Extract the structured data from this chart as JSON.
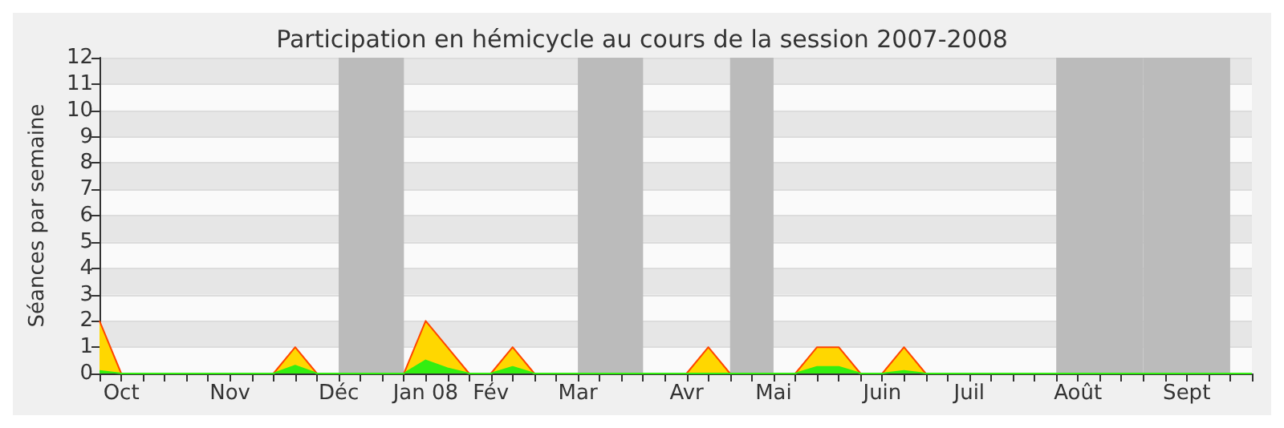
{
  "chart_data": {
    "type": "area",
    "title": "Participation en hémicycle au cours de la session 2007-2008",
    "ylabel": "Séances par semaine",
    "categories": [
      null,
      "Oct",
      null,
      null,
      null,
      null,
      "Nov",
      null,
      null,
      null,
      null,
      "Déc",
      null,
      null,
      null,
      "Jan 08",
      null,
      null,
      "Fév",
      null,
      null,
      null,
      "Mar",
      null,
      null,
      null,
      null,
      "Avr",
      null,
      null,
      null,
      "Mai",
      null,
      null,
      null,
      null,
      "Juin",
      null,
      null,
      null,
      "Juil",
      null,
      null,
      null,
      null,
      "Août",
      null,
      null,
      null,
      null,
      "Sept",
      null,
      null,
      null
    ],
    "series": [
      {
        "color": "#ffd700",
        "values": [
          2,
          0,
          0,
          0,
          0,
          0,
          0,
          0,
          0,
          1,
          0,
          0,
          0,
          0,
          0,
          2,
          1,
          0,
          0,
          1,
          0,
          0,
          0,
          0,
          0,
          0,
          0,
          0,
          1,
          0,
          0,
          0,
          0,
          1,
          1,
          0,
          0,
          1,
          0,
          0,
          0,
          0,
          0,
          0,
          0,
          0,
          0,
          0,
          0,
          0,
          0,
          0,
          0,
          0
        ]
      },
      {
        "color": "#33ee11",
        "values": [
          0.1,
          0,
          0,
          0,
          0,
          0,
          0,
          0,
          0,
          0.3,
          0,
          0,
          0,
          0,
          0,
          0.5,
          0.2,
          0,
          0,
          0.25,
          0,
          0,
          0,
          0,
          0,
          0,
          0,
          0,
          0,
          0,
          0,
          0,
          0,
          0.25,
          0.25,
          0,
          0,
          0.1,
          0,
          0,
          0,
          0,
          0,
          0,
          0,
          0,
          0,
          0,
          0,
          0,
          0,
          0,
          0,
          0
        ]
      }
    ],
    "ylim": [
      0,
      12
    ],
    "yticks": [
      0,
      1,
      2,
      3,
      4,
      5,
      6,
      7,
      8,
      9,
      10,
      11,
      12
    ],
    "grid": "y"
  }
}
